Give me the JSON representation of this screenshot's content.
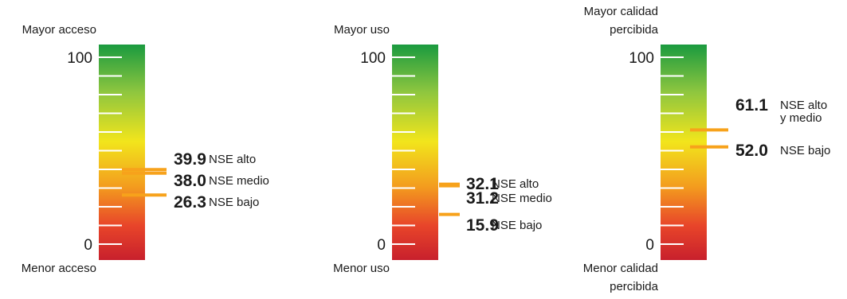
{
  "colors": {
    "scale_top": "#1a9a3f",
    "scale_upper": "#8ec63f",
    "scale_mid": "#f2e51c",
    "scale_lower": "#f39c1e",
    "scale_orange_red": "#e8452a",
    "scale_bottom": "#c8202c",
    "tick_line": "#ffffff",
    "marker": "#f7a21b",
    "text": "#1a1a1a"
  },
  "chart_data": [
    {
      "type": "gauge",
      "top_label": [
        "Mayor acceso"
      ],
      "bottom_label": [
        "Menor acceso"
      ],
      "ylim": [
        0,
        100
      ],
      "tick_labels": [
        "100",
        "0"
      ],
      "markers": [
        {
          "value": "39.9",
          "label": [
            "NSE alto"
          ]
        },
        {
          "value": "38.0",
          "label": [
            "NSE medio"
          ]
        },
        {
          "value": "26.3",
          "label": [
            "NSE bajo"
          ]
        }
      ]
    },
    {
      "type": "gauge",
      "top_label": [
        "Mayor uso"
      ],
      "bottom_label": [
        "Menor uso"
      ],
      "ylim": [
        0,
        100
      ],
      "tick_labels": [
        "100",
        "0"
      ],
      "markers": [
        {
          "value": "32.1",
          "label": [
            "NSE alto"
          ]
        },
        {
          "value": "31.2",
          "label": [
            "NSE medio"
          ]
        },
        {
          "value": "15.9",
          "label": [
            "NSE bajo"
          ]
        }
      ]
    },
    {
      "type": "gauge",
      "top_label": [
        "Mayor calidad",
        "percibida"
      ],
      "bottom_label": [
        "Menor calidad",
        "percibida"
      ],
      "ylim": [
        0,
        100
      ],
      "tick_labels": [
        "100",
        "0"
      ],
      "markers": [
        {
          "value": "61.1",
          "label": [
            "NSE alto",
            "y medio"
          ]
        },
        {
          "value": "52.0",
          "label": [
            "NSE bajo"
          ]
        }
      ]
    }
  ]
}
